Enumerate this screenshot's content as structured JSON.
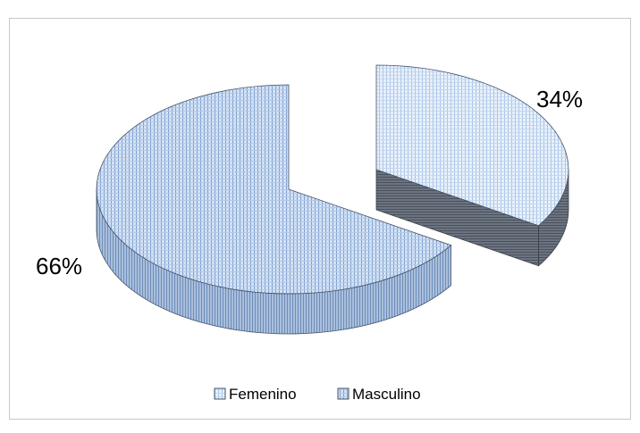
{
  "chart_data": {
    "type": "pie",
    "style": "3d-exploded",
    "categories": [
      "Femenino",
      "Masculino"
    ],
    "values": [
      34,
      66
    ],
    "data_labels": [
      "34%",
      "66%"
    ],
    "legend": {
      "placement": "bottom",
      "entries": [
        "Femenino",
        "Masculino"
      ]
    },
    "colors": {
      "Femenino": "#dbe8f7",
      "Masculino": "#b8cfec",
      "side_dark": "#5e6670",
      "side_blue": "#8fa9c9",
      "edge": "#44546a"
    }
  }
}
